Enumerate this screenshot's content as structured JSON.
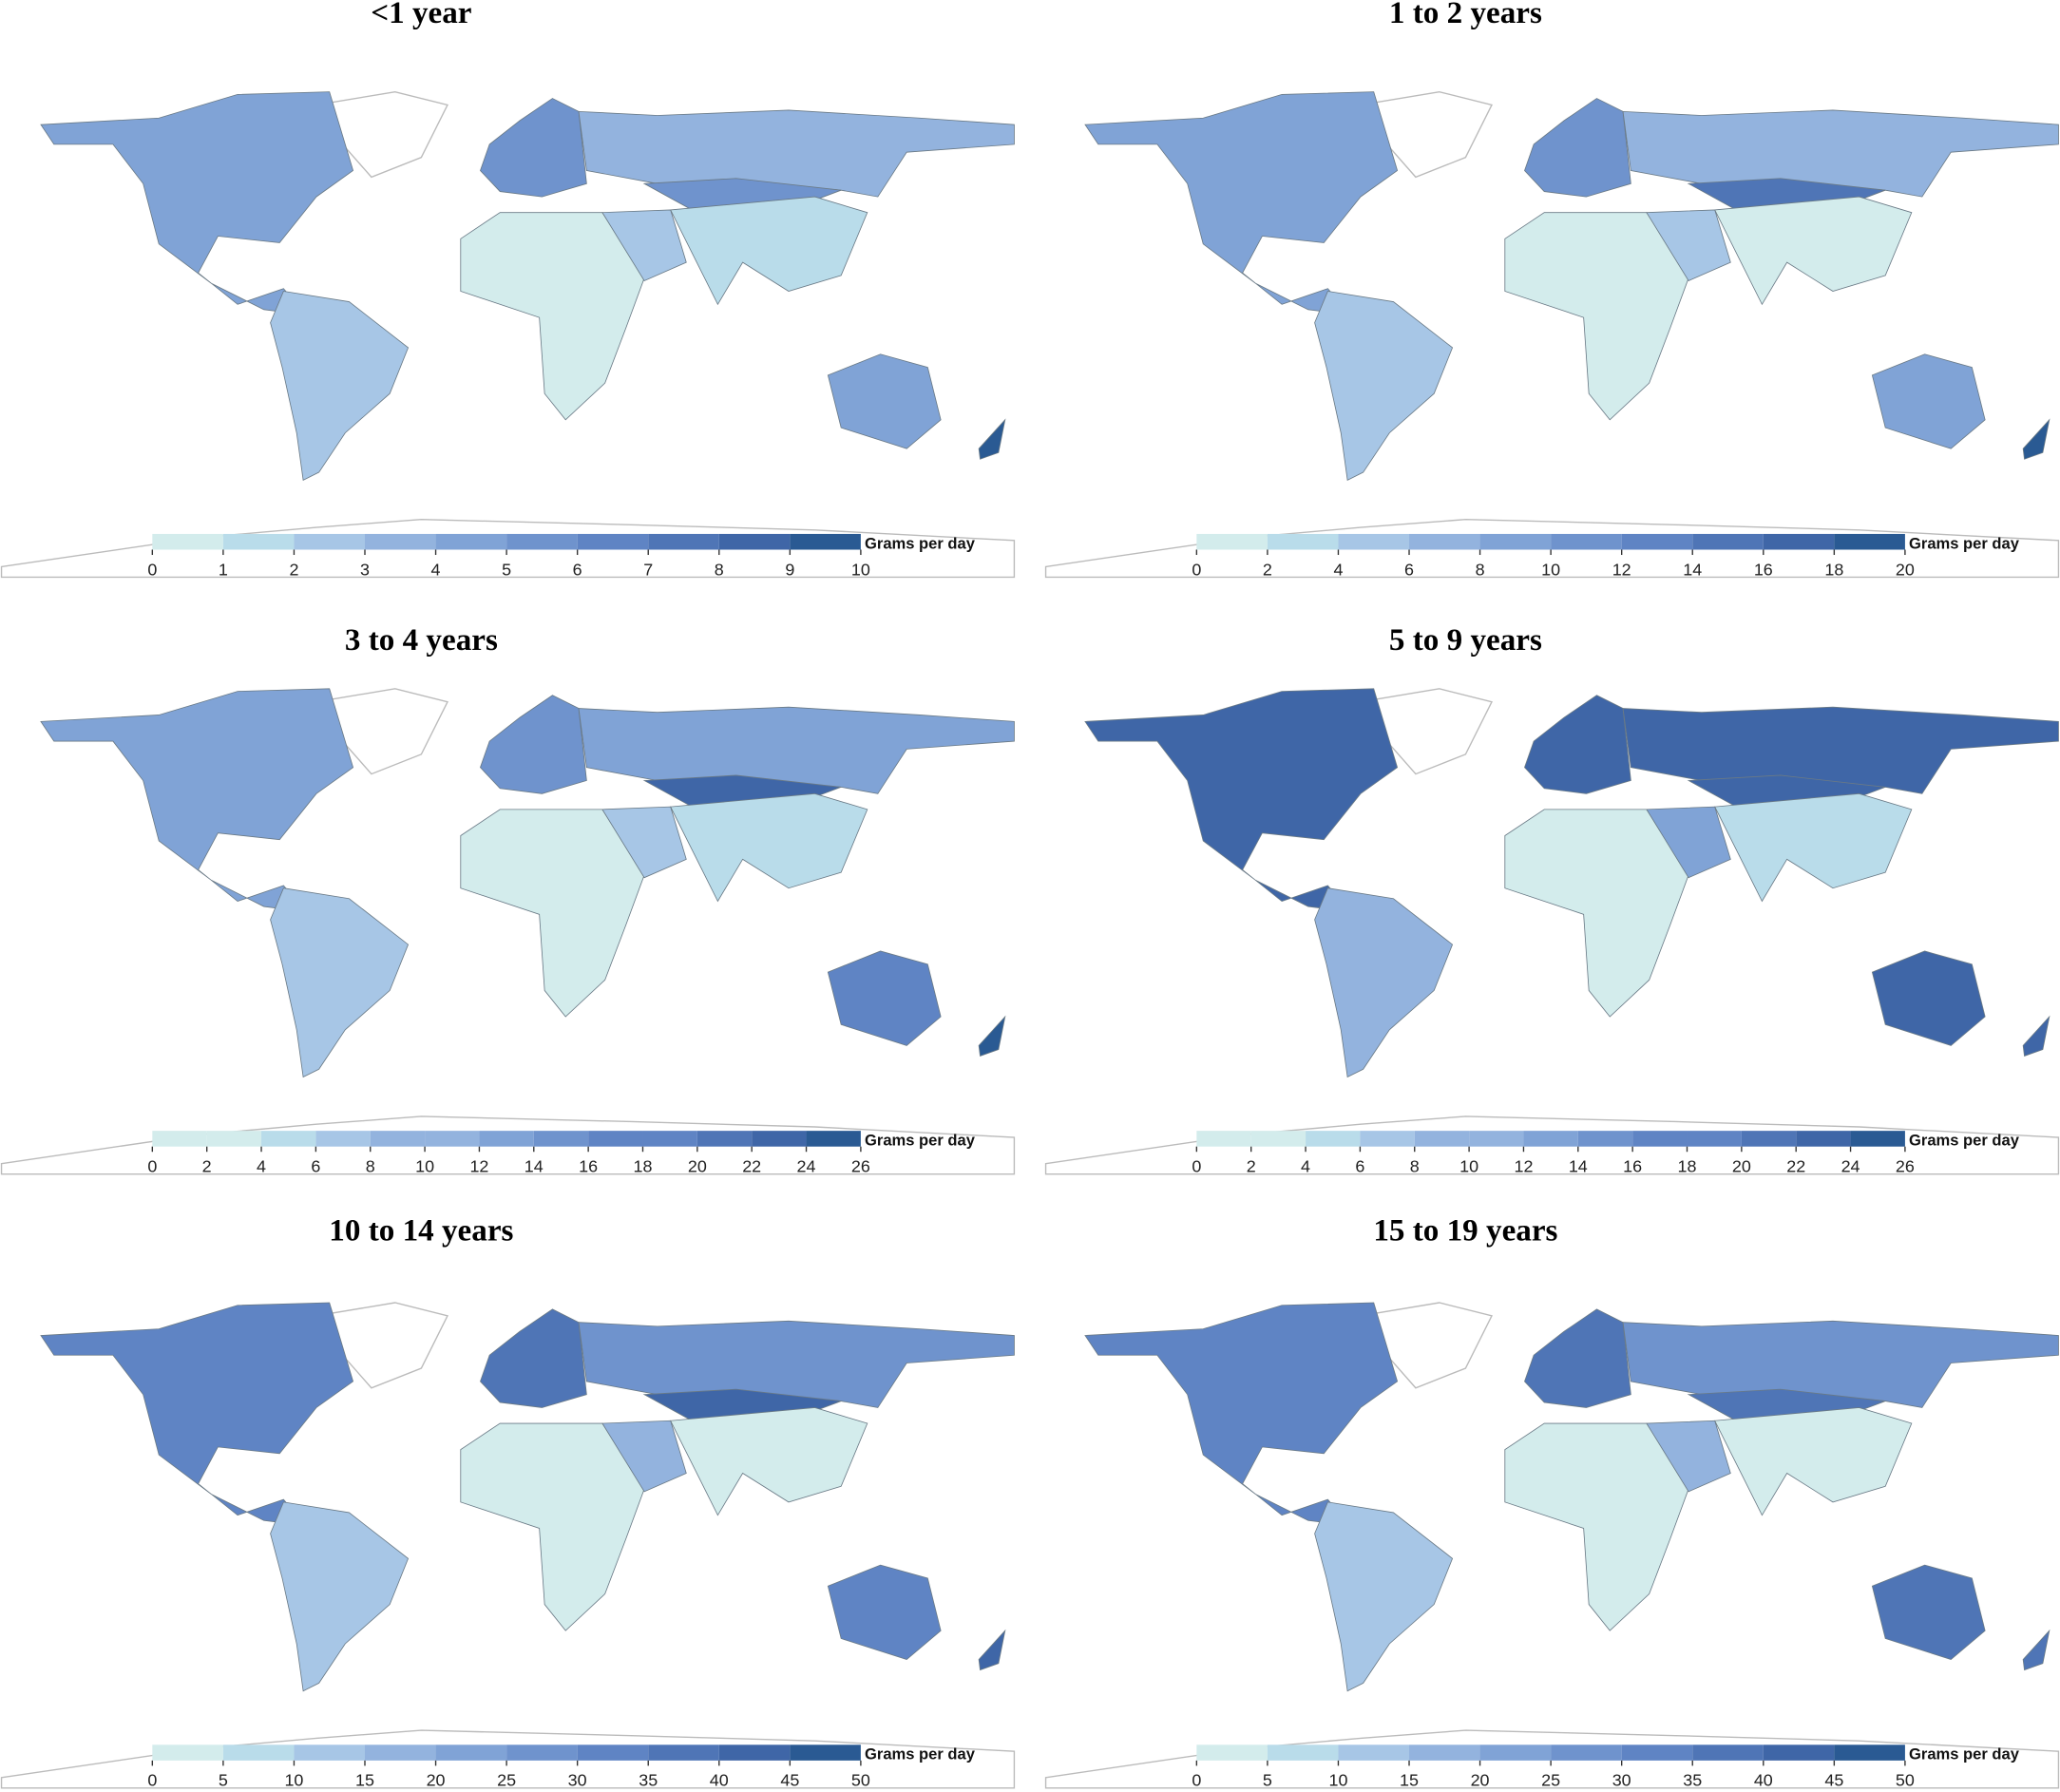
{
  "legend_colors": [
    "#d3ecec",
    "#b9dcea",
    "#a7c6e6",
    "#93b3de",
    "#80a3d6",
    "#6f93cd",
    "#5f84c4",
    "#4f75b6",
    "#3f66a7",
    "#2a5a93"
  ],
  "maps": [
    {
      "title": "<1 year",
      "legend_title": "Grams per day",
      "ticks": [
        0,
        1,
        2,
        3,
        4,
        5,
        6,
        7,
        8,
        9,
        10
      ]
    },
    {
      "title": "1 to 2 years",
      "legend_title": "Grams per day",
      "ticks": [
        0,
        2,
        4,
        6,
        8,
        10,
        12,
        14,
        16,
        18,
        20
      ]
    },
    {
      "title": "3 to 4 years",
      "legend_title": "Grams per day",
      "ticks": [
        0,
        2,
        4,
        6,
        8,
        10,
        12,
        14,
        16,
        18,
        20,
        22,
        24,
        26
      ]
    },
    {
      "title": "5 to 9 years",
      "legend_title": "Grams per day",
      "ticks": [
        0,
        2,
        4,
        6,
        8,
        10,
        12,
        14,
        16,
        18,
        20,
        22,
        24,
        26
      ]
    },
    {
      "title": "10 to 14 years",
      "legend_title": "Grams per day",
      "ticks": [
        0,
        5,
        10,
        15,
        20,
        25,
        30,
        35,
        40,
        45,
        50
      ]
    },
    {
      "title": "15 to 19 years",
      "legend_title": "Grams per day",
      "ticks": [
        0,
        5,
        10,
        15,
        20,
        25,
        30,
        35,
        40,
        45,
        50
      ]
    }
  ]
}
